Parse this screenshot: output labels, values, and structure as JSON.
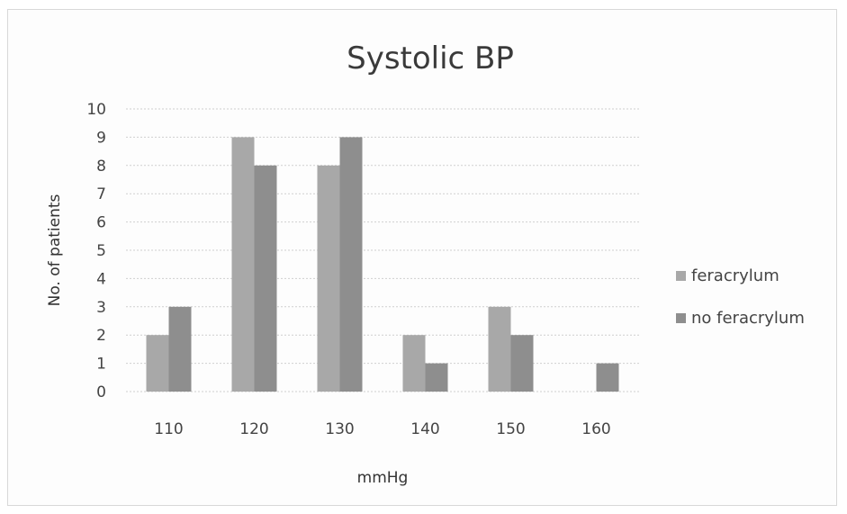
{
  "chart_data": {
    "type": "bar",
    "title": "Systolic BP",
    "xlabel": "mmHg",
    "ylabel": "No. of patients",
    "categories": [
      "110",
      "120",
      "130",
      "140",
      "150",
      "160"
    ],
    "series": [
      {
        "name": "feracrylum",
        "values": [
          2,
          9,
          8,
          2,
          3,
          0
        ],
        "color": "#a8a8a8"
      },
      {
        "name": "no feracrylum",
        "values": [
          3,
          8,
          9,
          1,
          2,
          1
        ],
        "color": "#8e8e8e"
      }
    ],
    "ylim": [
      0,
      10
    ],
    "yticks": [
      0,
      1,
      2,
      3,
      4,
      5,
      6,
      7,
      8,
      9,
      10
    ],
    "grid": true,
    "legend_position": "right"
  }
}
